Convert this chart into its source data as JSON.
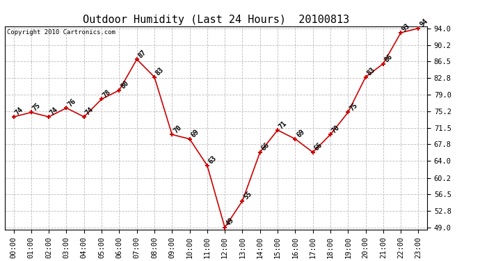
{
  "title": "Outdoor Humidity (Last 24 Hours)  20100813",
  "copyright": "Copyright 2010 Cartronics.com",
  "x_labels": [
    "00:00",
    "01:00",
    "02:00",
    "03:00",
    "04:00",
    "05:00",
    "06:00",
    "07:00",
    "08:00",
    "09:00",
    "10:00",
    "11:00",
    "12:00",
    "13:00",
    "14:00",
    "15:00",
    "16:00",
    "17:00",
    "18:00",
    "19:00",
    "20:00",
    "21:00",
    "22:00",
    "23:00"
  ],
  "y_values": [
    74,
    75,
    74,
    76,
    74,
    78,
    80,
    87,
    83,
    70,
    69,
    63,
    49,
    55,
    66,
    71,
    69,
    66,
    70,
    75,
    83,
    86,
    93,
    94
  ],
  "y_ticks": [
    49.0,
    52.8,
    56.5,
    60.2,
    64.0,
    67.8,
    71.5,
    75.2,
    79.0,
    82.8,
    86.5,
    90.2,
    94.0
  ],
  "y_min": 49.0,
  "y_max": 94.0,
  "line_color": "#cc0000",
  "marker_color": "#cc0000",
  "bg_color": "#ffffff",
  "grid_color": "#bbbbbb",
  "title_fontsize": 11,
  "label_fontsize": 7,
  "tick_fontsize": 7.5,
  "copyright_fontsize": 6.5
}
